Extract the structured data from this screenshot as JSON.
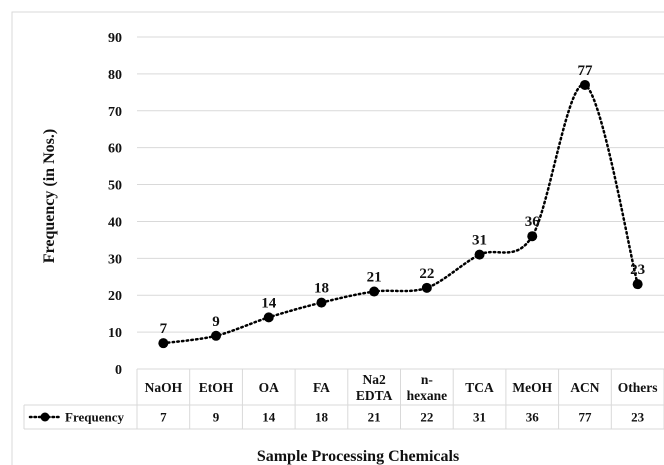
{
  "chart_data": {
    "type": "line",
    "categories": [
      [
        "NaOH"
      ],
      [
        "EtOH"
      ],
      [
        "OA"
      ],
      [
        "FA"
      ],
      [
        "Na2",
        "EDTA"
      ],
      [
        "n-",
        "hexane"
      ],
      [
        "TCA"
      ],
      [
        "MeOH"
      ],
      [
        "ACN"
      ],
      [
        "Others"
      ]
    ],
    "series": [
      {
        "name": "Frequency",
        "values": [
          7,
          9,
          14,
          18,
          21,
          22,
          31,
          36,
          77,
          23
        ]
      }
    ],
    "ylabel": "Frequency (in Nos.)",
    "xlabel": "Sample Processing Chemicals",
    "ylim": [
      0,
      90
    ],
    "yticks": [
      0,
      10,
      20,
      30,
      40,
      50,
      60,
      70,
      80,
      90
    ],
    "grid": true,
    "data_table": true,
    "line_style": "dotted",
    "marker": "circle",
    "colors": {
      "line": "#000000",
      "grid": "#d9d9d9",
      "border": "#d9d9d9"
    }
  }
}
